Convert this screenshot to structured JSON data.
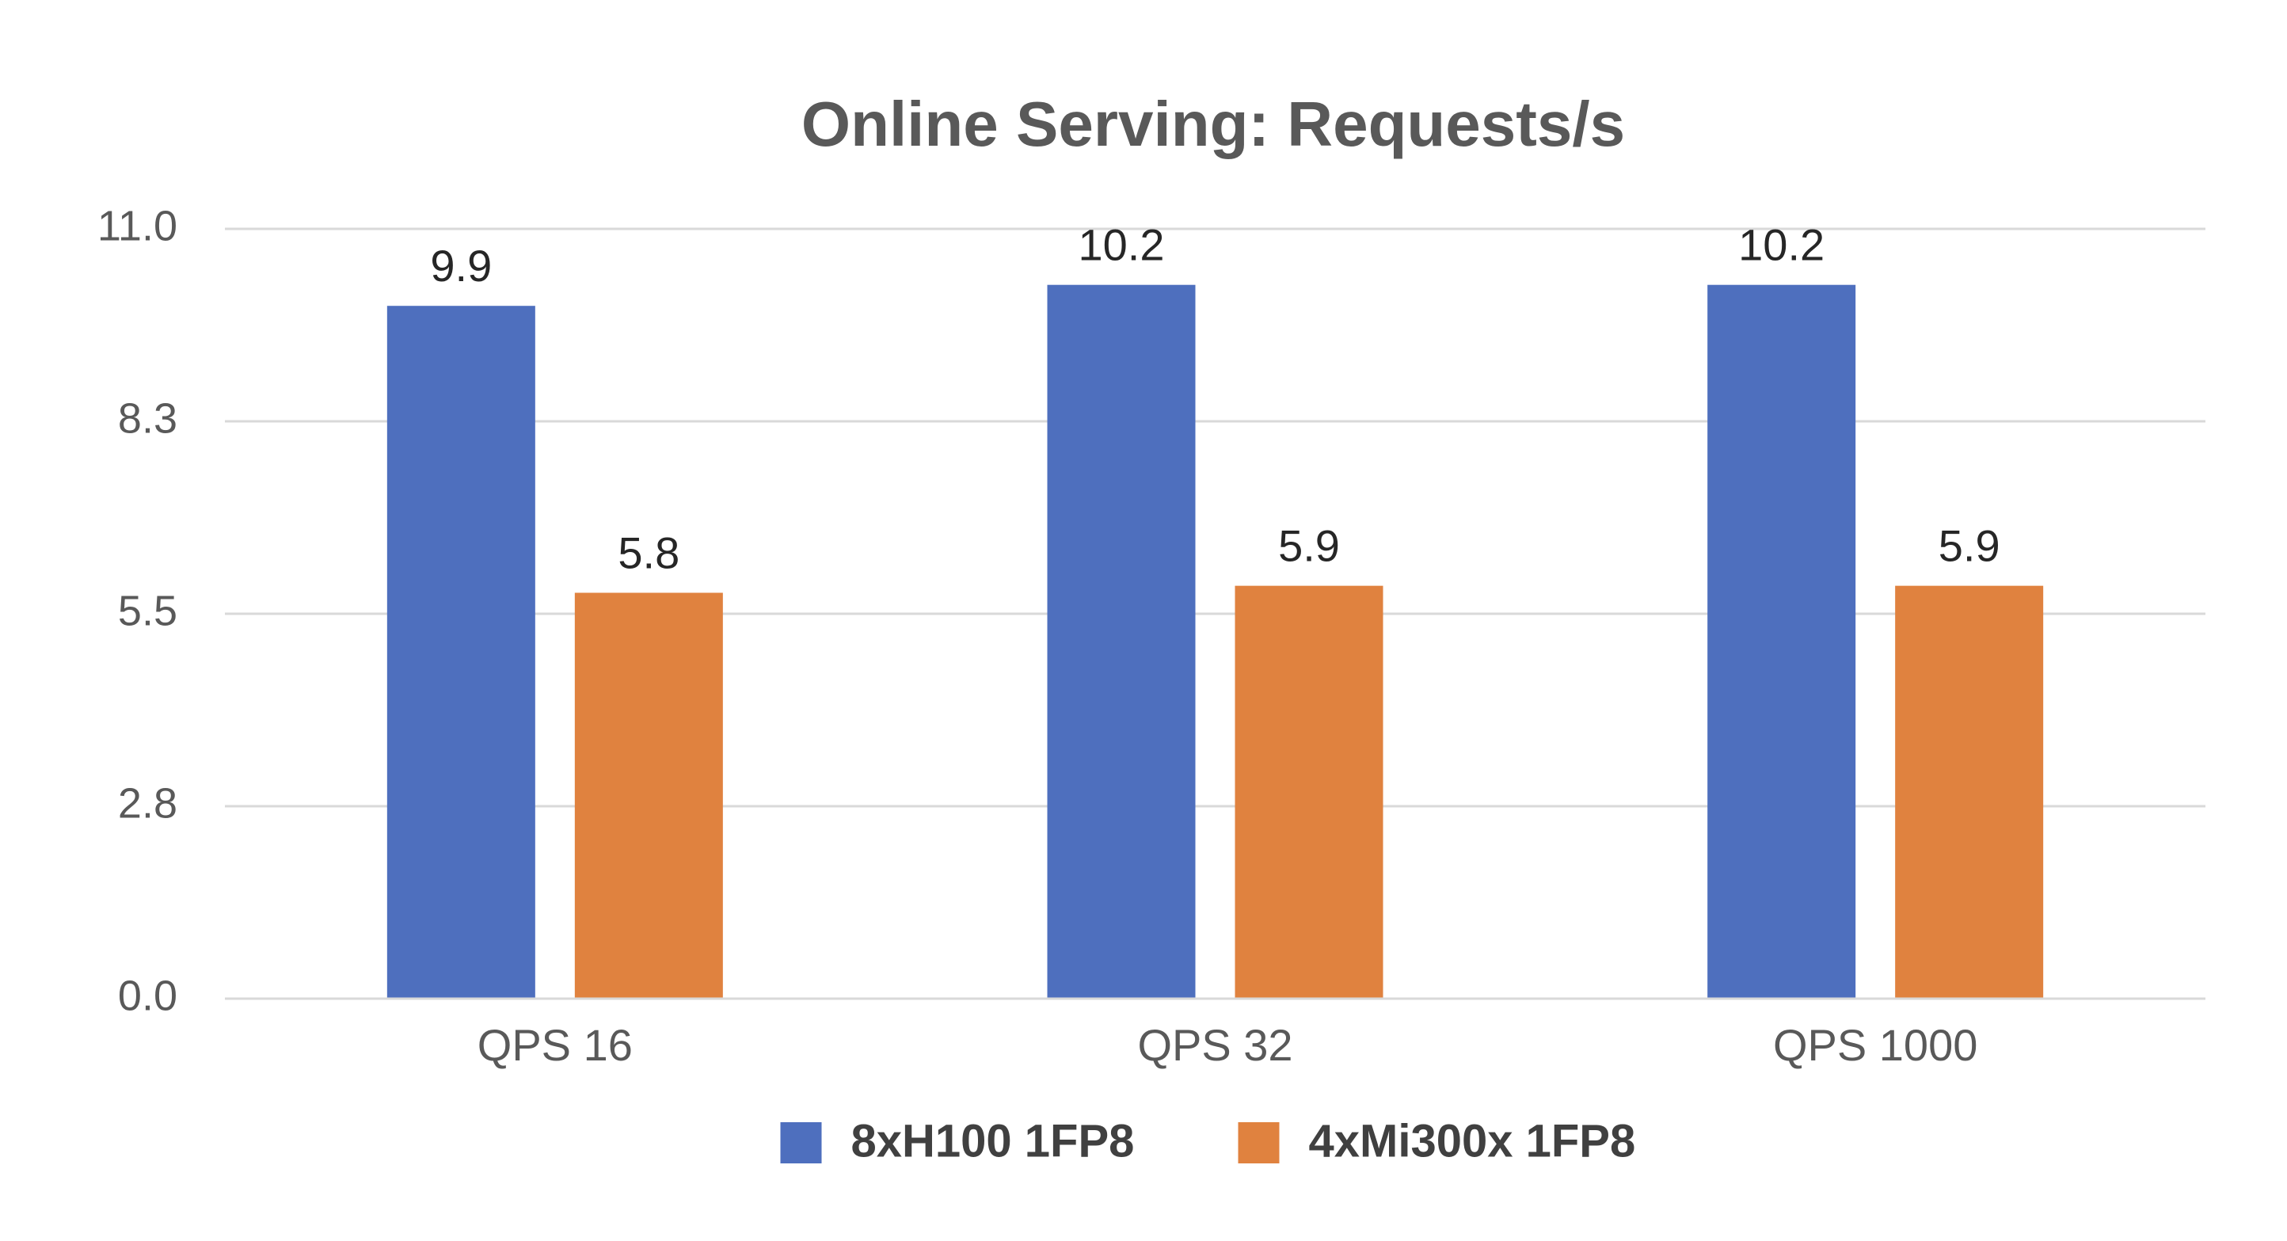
{
  "chart_data": {
    "type": "bar",
    "title": "Online Serving: Requests/s",
    "categories": [
      "QPS 16",
      "QPS 32",
      "QPS 1000"
    ],
    "series": [
      {
        "name": "8xH100 1FP8",
        "color": "#4e6fbe",
        "values": [
          9.9,
          10.2,
          10.2
        ]
      },
      {
        "name": "4xMi300x 1FP8",
        "color": "#e0823f",
        "values": [
          5.8,
          5.9,
          5.9
        ]
      }
    ],
    "ylim": [
      0,
      11
    ],
    "yticks": [
      {
        "value": 0,
        "label": "0.0"
      },
      {
        "value": 2.75,
        "label": "2.8"
      },
      5.5,
      {
        "value": 8.25,
        "label": "8.3"
      },
      {
        "value": 11,
        "label": "11.0"
      }
    ],
    "grid": true,
    "legend": "bottom"
  }
}
